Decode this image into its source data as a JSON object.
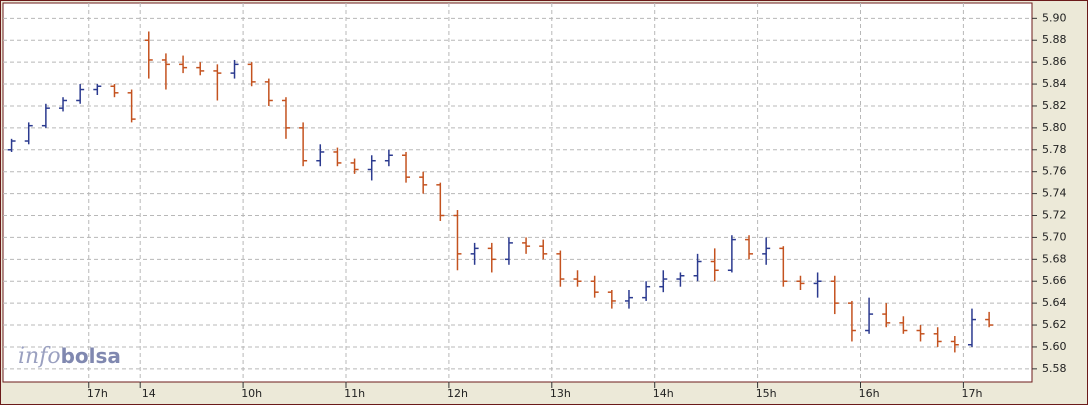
{
  "chart_data": {
    "type": "ohlc",
    "watermark": [
      "info",
      "bolsa"
    ],
    "up_color": "#2b3a8f",
    "down_color": "#c4521f",
    "grid": true,
    "categories": [
      null,
      null,
      null,
      null,
      null,
      "17h",
      null,
      null,
      "14",
      null,
      null,
      null,
      null,
      null,
      "10h",
      null,
      null,
      null,
      null,
      null,
      "11h",
      null,
      null,
      null,
      null,
      null,
      "12h",
      null,
      null,
      null,
      null,
      null,
      "13h",
      null,
      null,
      null,
      null,
      null,
      "14h",
      null,
      null,
      null,
      null,
      null,
      "15h",
      null,
      null,
      null,
      null,
      null,
      "16h",
      null,
      null,
      null,
      null,
      null,
      "17h",
      null,
      null,
      null
    ],
    "open": [
      5.78,
      5.788,
      5.802,
      5.818,
      5.825,
      5.835,
      5.838,
      5.832,
      5.88,
      5.862,
      5.858,
      5.855,
      5.852,
      5.85,
      5.858,
      5.842,
      5.825,
      5.8,
      5.77,
      5.778,
      5.768,
      5.762,
      5.77,
      5.775,
      5.755,
      5.748,
      5.72,
      5.685,
      5.69,
      5.68,
      5.695,
      5.692,
      5.685,
      5.662,
      5.66,
      5.65,
      5.642,
      5.645,
      5.655,
      5.662,
      5.665,
      5.678,
      5.67,
      5.698,
      5.685,
      5.69,
      5.66,
      5.658,
      5.66,
      5.64,
      5.615,
      5.63,
      5.622,
      5.615,
      5.612,
      5.605,
      5.602,
      5.625,
      null,
      null
    ],
    "high": [
      5.79,
      5.805,
      5.822,
      5.828,
      5.84,
      5.84,
      5.84,
      5.835,
      5.888,
      5.868,
      5.866,
      5.86,
      5.858,
      5.862,
      5.86,
      5.845,
      5.828,
      5.805,
      5.785,
      5.782,
      5.772,
      5.775,
      5.78,
      5.778,
      5.76,
      5.75,
      5.725,
      5.695,
      5.695,
      5.7,
      5.7,
      5.698,
      5.688,
      5.67,
      5.665,
      5.652,
      5.652,
      5.66,
      5.67,
      5.668,
      5.685,
      5.69,
      5.702,
      5.702,
      5.7,
      5.692,
      5.665,
      5.668,
      5.665,
      5.642,
      5.645,
      5.64,
      5.628,
      5.62,
      5.618,
      5.61,
      5.635,
      5.632,
      null,
      null
    ],
    "low": [
      5.778,
      5.785,
      5.8,
      5.815,
      5.822,
      5.83,
      5.828,
      5.805,
      5.845,
      5.835,
      5.85,
      5.848,
      5.825,
      5.845,
      5.838,
      5.82,
      5.79,
      5.765,
      5.765,
      5.765,
      5.758,
      5.752,
      5.765,
      5.75,
      5.74,
      5.715,
      5.67,
      5.675,
      5.668,
      5.675,
      5.685,
      5.68,
      5.655,
      5.655,
      5.645,
      5.635,
      5.635,
      5.642,
      5.65,
      5.655,
      5.66,
      5.66,
      5.668,
      5.68,
      5.675,
      5.655,
      5.652,
      5.645,
      5.63,
      5.605,
      5.612,
      5.618,
      5.612,
      5.605,
      5.6,
      5.595,
      5.6,
      5.618,
      null,
      null
    ],
    "close": [
      5.788,
      5.802,
      5.818,
      5.825,
      5.835,
      5.838,
      5.832,
      5.808,
      5.862,
      5.858,
      5.855,
      5.852,
      5.85,
      5.858,
      5.842,
      5.825,
      5.8,
      5.77,
      5.778,
      5.768,
      5.762,
      5.77,
      5.775,
      5.755,
      5.748,
      5.72,
      5.685,
      5.69,
      5.68,
      5.695,
      5.692,
      5.685,
      5.662,
      5.66,
      5.65,
      5.642,
      5.645,
      5.655,
      5.662,
      5.665,
      5.678,
      5.67,
      5.698,
      5.685,
      5.69,
      5.66,
      5.658,
      5.66,
      5.64,
      5.615,
      5.63,
      5.622,
      5.615,
      5.612,
      5.605,
      5.602,
      5.625,
      5.62,
      null,
      null
    ],
    "ylim": [
      5.568,
      5.914
    ],
    "yticks": [
      5.58,
      {
        "value": 5.6,
        "label": "5.60"
      },
      5.62,
      5.64,
      5.66,
      5.68,
      {
        "value": 5.7,
        "label": "5.70"
      },
      5.72,
      5.74,
      5.76,
      5.78,
      {
        "value": 5.8,
        "label": "5.80"
      },
      5.82,
      5.84,
      5.86,
      5.88,
      {
        "value": 5.9,
        "label": "5.90"
      }
    ]
  }
}
